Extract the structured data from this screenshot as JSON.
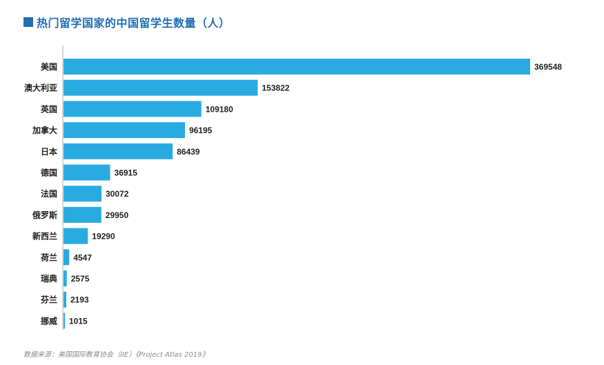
{
  "title": "热门留学国家的中国留学生数量（人）",
  "source": "数据来源：美国国际教育协会（IIE）《Project Atlas 2019》",
  "colors": {
    "bar": "#29abe2",
    "title": "#1f6db3",
    "axis": "#c8c8c8"
  },
  "chart_data": {
    "type": "bar",
    "orientation": "horizontal",
    "categories": [
      "美国",
      "澳大利亚",
      "英国",
      "加拿大",
      "日本",
      "德国",
      "法国",
      "俄罗斯",
      "新西兰",
      "荷兰",
      "瑞典",
      "芬兰",
      "挪威"
    ],
    "values": [
      369548,
      153822,
      109180,
      96195,
      86439,
      36915,
      30072,
      29950,
      19290,
      4547,
      2575,
      2193,
      1015
    ],
    "data_labels": [
      "369548",
      "153822",
      "109180",
      "96195",
      "86439",
      "36915",
      "30072",
      "29950",
      "19290",
      "4547",
      "2575",
      "2193",
      "1015"
    ],
    "title": "热门留学国家的中国留学生数量（人）",
    "xlabel": "",
    "ylabel": "",
    "grid": false,
    "legend": "none"
  }
}
